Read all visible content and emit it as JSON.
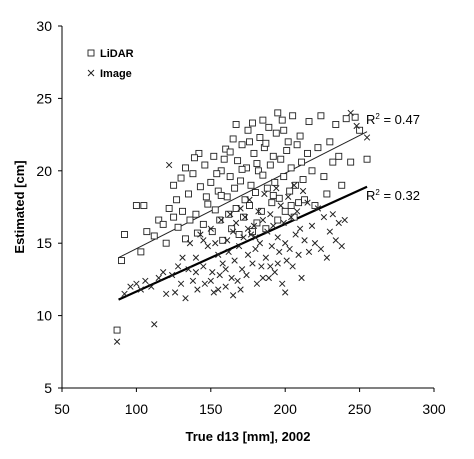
{
  "chart_data": {
    "type": "scatter",
    "title": "",
    "xlabel": "True d13 [mm], 2002",
    "ylabel": "Estimated [cm]",
    "xlim": [
      50,
      300
    ],
    "ylim": [
      5,
      30
    ],
    "xticks": [
      50,
      100,
      150,
      200,
      250,
      300
    ],
    "yticks": [
      5,
      10,
      15,
      20,
      25,
      30
    ],
    "grid": false,
    "legend": {
      "placement": "top-left"
    },
    "series": [
      {
        "name": "LiDAR",
        "marker": "open-square",
        "color": "#222222",
        "trendline": {
          "x": [
            88,
            255
          ],
          "y": [
            14.0,
            22.7
          ],
          "r2_label": "R",
          "r2_sup": "2",
          "r2_value": " = 0.47"
        },
        "points": [
          [
            87,
            9.0
          ],
          [
            90,
            13.8
          ],
          [
            92,
            15.6
          ],
          [
            100,
            17.6
          ],
          [
            103,
            14.4
          ],
          [
            105,
            17.6
          ],
          [
            107,
            15.8
          ],
          [
            112,
            15.5
          ],
          [
            115,
            16.6
          ],
          [
            118,
            16.3
          ],
          [
            120,
            15.0
          ],
          [
            122,
            17.4
          ],
          [
            125,
            16.8
          ],
          [
            127,
            18.0
          ],
          [
            128,
            16.1
          ],
          [
            130,
            19.5
          ],
          [
            131,
            17.2
          ],
          [
            133,
            15.3
          ],
          [
            135,
            18.4
          ],
          [
            136,
            16.6
          ],
          [
            138,
            19.8
          ],
          [
            140,
            17.0
          ],
          [
            141,
            15.7
          ],
          [
            143,
            18.9
          ],
          [
            145,
            16.3
          ],
          [
            146,
            20.4
          ],
          [
            148,
            17.7
          ],
          [
            150,
            19.2
          ],
          [
            151,
            15.8
          ],
          [
            152,
            21.0
          ],
          [
            153,
            17.3
          ],
          [
            155,
            18.6
          ],
          [
            156,
            16.6
          ],
          [
            157,
            20.0
          ],
          [
            158,
            15.2
          ],
          [
            160,
            21.5
          ],
          [
            161,
            18.2
          ],
          [
            162,
            17.0
          ],
          [
            163,
            19.6
          ],
          [
            164,
            16.0
          ],
          [
            165,
            22.2
          ],
          [
            166,
            18.8
          ],
          [
            167,
            17.4
          ],
          [
            168,
            20.7
          ],
          [
            169,
            15.6
          ],
          [
            170,
            19.3
          ],
          [
            171,
            21.8
          ],
          [
            172,
            16.8
          ],
          [
            173,
            18.0
          ],
          [
            174,
            20.2
          ],
          [
            175,
            22.8
          ],
          [
            176,
            17.6
          ],
          [
            177,
            19.0
          ],
          [
            178,
            15.8
          ],
          [
            179,
            21.2
          ],
          [
            180,
            18.5
          ],
          [
            181,
            16.4
          ],
          [
            182,
            20.0
          ],
          [
            183,
            22.3
          ],
          [
            184,
            17.2
          ],
          [
            185,
            19.7
          ],
          [
            186,
            21.6
          ],
          [
            187,
            16.0
          ],
          [
            188,
            18.8
          ],
          [
            189,
            23.0
          ],
          [
            190,
            20.4
          ],
          [
            191,
            17.8
          ],
          [
            192,
            21.0
          ],
          [
            193,
            19.2
          ],
          [
            194,
            22.6
          ],
          [
            195,
            16.6
          ],
          [
            196,
            18.1
          ],
          [
            197,
            20.8
          ],
          [
            198,
            23.5
          ],
          [
            199,
            19.6
          ],
          [
            200,
            17.2
          ],
          [
            201,
            21.4
          ],
          [
            202,
            22.0
          ],
          [
            203,
            18.6
          ],
          [
            204,
            20.2
          ],
          [
            205,
            23.8
          ],
          [
            206,
            16.8
          ],
          [
            207,
            19.0
          ],
          [
            208,
            21.8
          ],
          [
            209,
            17.8
          ],
          [
            210,
            22.4
          ],
          [
            211,
            20.6
          ],
          [
            212,
            19.4
          ],
          [
            213,
            18.0
          ],
          [
            215,
            21.2
          ],
          [
            216,
            23.4
          ],
          [
            218,
            20.0
          ],
          [
            220,
            17.6
          ],
          [
            222,
            21.6
          ],
          [
            224,
            23.8
          ],
          [
            226,
            19.6
          ],
          [
            228,
            18.4
          ],
          [
            230,
            22.0
          ],
          [
            232,
            20.6
          ],
          [
            234,
            23.2
          ],
          [
            236,
            21.0
          ],
          [
            238,
            19.0
          ],
          [
            241,
            23.6
          ],
          [
            244,
            20.6
          ],
          [
            247,
            23.7
          ],
          [
            250,
            22.8
          ],
          [
            255,
            20.8
          ],
          [
            133,
            20.2
          ],
          [
            142,
            21.2
          ],
          [
            159,
            20.8
          ],
          [
            167,
            23.2
          ],
          [
            176,
            22.0
          ],
          [
            185,
            23.5
          ],
          [
            195,
            24.0
          ],
          [
            154,
            19.8
          ],
          [
            139,
            20.9
          ],
          [
            125,
            19.0
          ],
          [
            147,
            18.2
          ],
          [
            163,
            21.3
          ],
          [
            181,
            20.5
          ],
          [
            199,
            22.8
          ],
          [
            187,
            21.9
          ],
          [
            171,
            20.1
          ],
          [
            157,
            18.3
          ],
          [
            178,
            23.3
          ],
          [
            192,
            18.3
          ],
          [
            204,
            17.6
          ]
        ]
      },
      {
        "name": "Image",
        "marker": "x",
        "color": "#222222",
        "trendline": {
          "x": [
            88,
            255
          ],
          "y": [
            11.1,
            18.9
          ],
          "r2_label": "R",
          "r2_sup": "2",
          "r2_value": " = 0.32"
        },
        "points": [
          [
            87,
            8.2
          ],
          [
            92,
            11.5
          ],
          [
            96,
            12.0
          ],
          [
            100,
            12.2
          ],
          [
            103,
            11.8
          ],
          [
            106,
            12.4
          ],
          [
            110,
            12.0
          ],
          [
            112,
            9.4
          ],
          [
            115,
            12.6
          ],
          [
            118,
            13.0
          ],
          [
            120,
            11.5
          ],
          [
            122,
            20.4
          ],
          [
            124,
            12.8
          ],
          [
            126,
            11.6
          ],
          [
            128,
            13.4
          ],
          [
            130,
            12.2
          ],
          [
            131,
            14.0
          ],
          [
            133,
            11.2
          ],
          [
            135,
            13.2
          ],
          [
            136,
            15.0
          ],
          [
            138,
            12.4
          ],
          [
            140,
            14.0
          ],
          [
            141,
            11.8
          ],
          [
            143,
            15.6
          ],
          [
            145,
            13.4
          ],
          [
            146,
            12.2
          ],
          [
            148,
            14.8
          ],
          [
            150,
            16.0
          ],
          [
            151,
            13.0
          ],
          [
            152,
            11.6
          ],
          [
            153,
            15.0
          ],
          [
            155,
            14.2
          ],
          [
            156,
            12.8
          ],
          [
            157,
            16.6
          ],
          [
            158,
            13.6
          ],
          [
            160,
            12.0
          ],
          [
            161,
            15.2
          ],
          [
            162,
            14.4
          ],
          [
            163,
            17.0
          ],
          [
            164,
            12.6
          ],
          [
            165,
            15.8
          ],
          [
            166,
            13.8
          ],
          [
            167,
            16.4
          ],
          [
            168,
            12.4
          ],
          [
            169,
            14.8
          ],
          [
            170,
            17.4
          ],
          [
            171,
            13.2
          ],
          [
            172,
            15.4
          ],
          [
            173,
            16.8
          ],
          [
            174,
            12.8
          ],
          [
            175,
            14.2
          ],
          [
            176,
            18.0
          ],
          [
            177,
            15.6
          ],
          [
            178,
            13.6
          ],
          [
            179,
            16.2
          ],
          [
            180,
            14.6
          ],
          [
            181,
            12.2
          ],
          [
            182,
            17.2
          ],
          [
            183,
            15.0
          ],
          [
            184,
            13.4
          ],
          [
            185,
            16.6
          ],
          [
            186,
            18.4
          ],
          [
            187,
            14.0
          ],
          [
            188,
            15.8
          ],
          [
            189,
            12.6
          ],
          [
            190,
            17.0
          ],
          [
            191,
            14.8
          ],
          [
            192,
            16.2
          ],
          [
            193,
            13.0
          ],
          [
            194,
            18.8
          ],
          [
            195,
            15.4
          ],
          [
            196,
            14.4
          ],
          [
            197,
            17.6
          ],
          [
            198,
            12.2
          ],
          [
            199,
            16.4
          ],
          [
            200,
            15.0
          ],
          [
            201,
            13.8
          ],
          [
            202,
            18.2
          ],
          [
            203,
            14.6
          ],
          [
            204,
            16.8
          ],
          [
            205,
            13.4
          ],
          [
            206,
            19.0
          ],
          [
            207,
            15.6
          ],
          [
            208,
            17.2
          ],
          [
            209,
            14.2
          ],
          [
            210,
            16.0
          ],
          [
            211,
            12.6
          ],
          [
            212,
            18.6
          ],
          [
            213,
            15.2
          ],
          [
            215,
            17.8
          ],
          [
            216,
            14.4
          ],
          [
            218,
            16.2
          ],
          [
            220,
            15.0
          ],
          [
            222,
            17.4
          ],
          [
            224,
            14.6
          ],
          [
            226,
            16.8
          ],
          [
            228,
            14.0
          ],
          [
            230,
            15.8
          ],
          [
            232,
            17.0
          ],
          [
            234,
            15.2
          ],
          [
            236,
            16.4
          ],
          [
            238,
            14.8
          ],
          [
            240,
            16.6
          ],
          [
            244,
            24.0
          ],
          [
            248,
            23.1
          ],
          [
            255,
            22.3
          ],
          [
            140,
            13.0
          ],
          [
            150,
            12.4
          ],
          [
            160,
            13.2
          ],
          [
            170,
            11.8
          ],
          [
            180,
            15.4
          ],
          [
            190,
            13.4
          ],
          [
            200,
            11.6
          ],
          [
            145,
            15.2
          ],
          [
            155,
            11.8
          ],
          [
            175,
            16.0
          ],
          [
            185,
            12.6
          ],
          [
            195,
            13.6
          ],
          [
            165,
            11.4
          ]
        ]
      }
    ]
  }
}
